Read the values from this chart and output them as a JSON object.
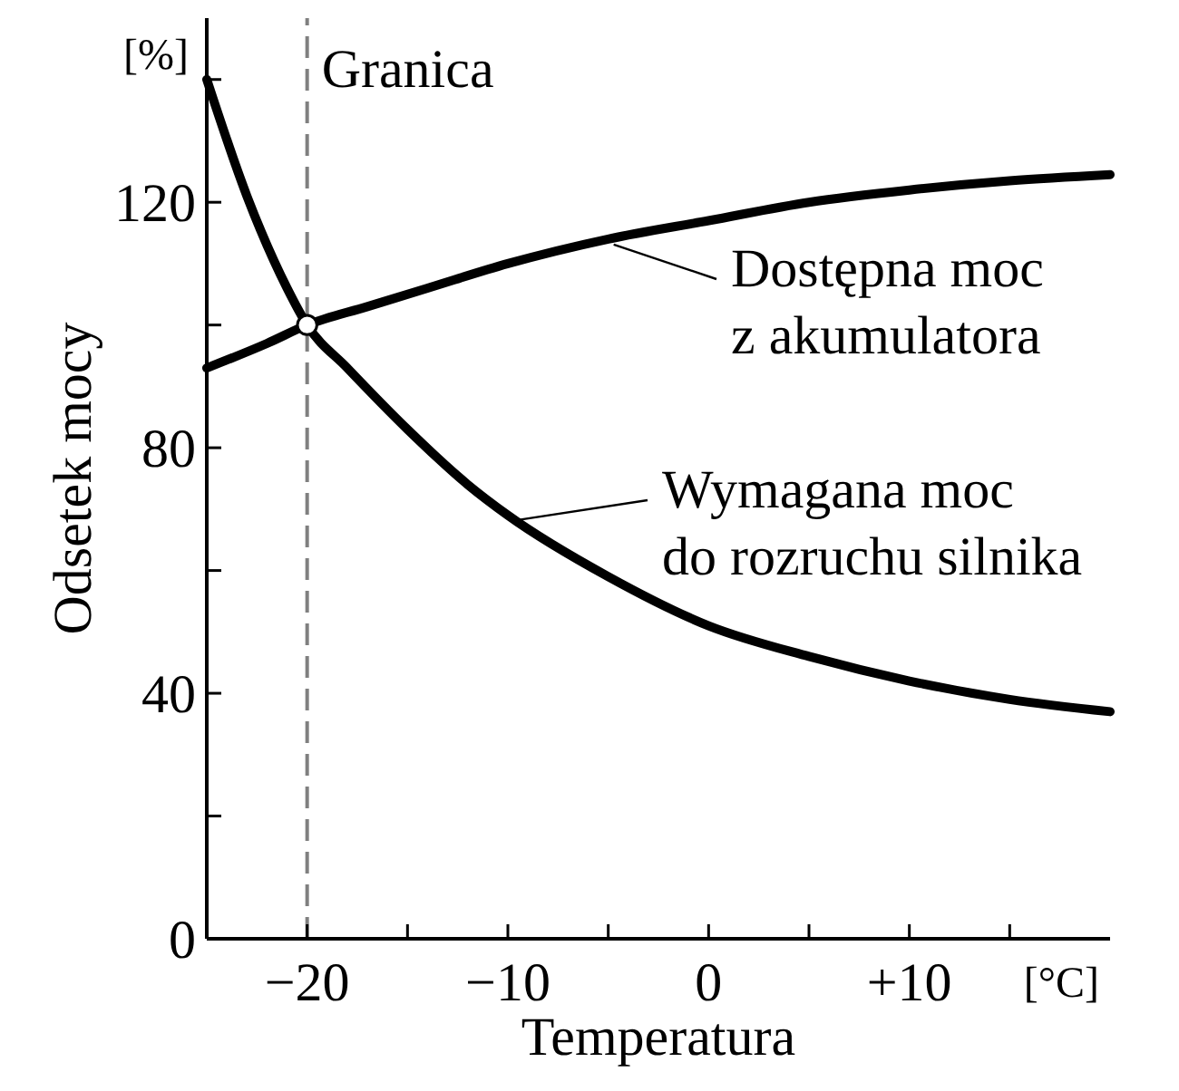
{
  "chart_data": {
    "type": "line",
    "xlabel": "Temperatura",
    "ylabel": "Odsetek mocy",
    "annotations": [
      "[%]",
      "[°C]"
    ],
    "xlim": [
      -25,
      20
    ],
    "xticks": [
      {
        "value": -20,
        "label": "−20"
      },
      {
        "value": -15,
        "label": null
      },
      {
        "value": -10,
        "label": "−10"
      },
      {
        "value": -5,
        "label": null
      },
      0,
      {
        "value": 5,
        "label": null
      },
      {
        "value": 10,
        "label": "+10"
      },
      {
        "value": 15,
        "label": null
      }
    ],
    "ylim": [
      0,
      150
    ],
    "yticks": [
      0,
      {
        "value": 20,
        "label": null
      },
      40,
      {
        "value": 60,
        "label": null
      },
      80,
      {
        "value": 100,
        "label": null
      },
      120,
      {
        "value": 140,
        "label": null
      }
    ],
    "grid": false,
    "legend": "right",
    "marker": "none",
    "line_style": "solid",
    "ref_lines": [
      {
        "axis": "x",
        "value": -20,
        "label": "Granica",
        "color": "#808080",
        "line_style": "dashed"
      }
    ],
    "series": [
      {
        "name": "Dostępna moc\nz akumulatora",
        "color": "#000000",
        "x": [
          -25,
          -22,
          -20,
          -17,
          -14,
          -10,
          -5,
          0,
          5,
          10,
          15,
          20
        ],
        "values": [
          93,
          97,
          100,
          103,
          106,
          110,
          114,
          117,
          120,
          122,
          123.5,
          124.5
        ]
      },
      {
        "name": "Wymagana moc\ndo rozruchu silnika",
        "color": "#000000",
        "x": [
          -25,
          -23,
          -21,
          -20,
          -18,
          -15,
          -12,
          -10,
          -5,
          0,
          5,
          10,
          15,
          20
        ],
        "values": [
          140,
          121,
          106,
          100,
          93,
          83,
          74,
          69,
          59,
          51,
          46,
          42,
          39,
          37
        ]
      },
      {
        "type": "scatter",
        "color": "#ffffff",
        "marker": "circle",
        "x": [
          -20
        ],
        "values": [
          100
        ]
      }
    ]
  }
}
